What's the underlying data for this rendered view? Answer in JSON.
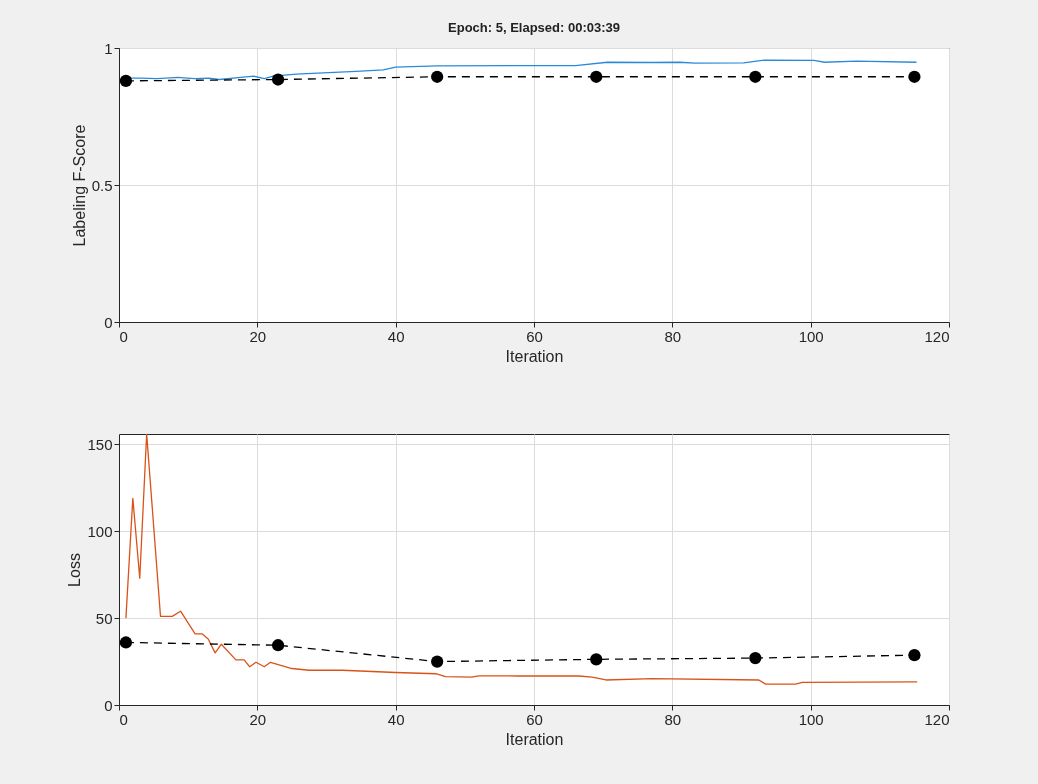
{
  "chart_data": [
    {
      "type": "line",
      "title": "Epoch: 5, Elapsed: 00:03:39",
      "xlabel": "Iteration",
      "ylabel": "Labeling F-Score",
      "xlim": [
        0,
        120
      ],
      "xticks": [
        0,
        20,
        40,
        60,
        80,
        100,
        120
      ],
      "ylim": [
        0,
        1
      ],
      "yticks": [
        0,
        0.5,
        1
      ],
      "grid": true,
      "series": [
        {
          "color": "#2b8ad8",
          "marker": "none",
          "line_style": "solid",
          "x": [
            1.5,
            3.2,
            5.5,
            8.5,
            10.9,
            13,
            14.5,
            17.6,
            19.5,
            21,
            22.3,
            25.6,
            30.3,
            34.3,
            38.2,
            40,
            46,
            66,
            70.6,
            76.9,
            81,
            83.3,
            90.3,
            93.4,
            100.5,
            102,
            106.6,
            115.3
          ],
          "values": [
            0.89,
            0.89,
            0.888,
            0.893,
            0.888,
            0.89,
            0.885,
            0.893,
            0.897,
            0.888,
            0.897,
            0.905,
            0.91,
            0.915,
            0.92,
            0.93,
            0.935,
            0.936,
            0.948,
            0.947,
            0.948,
            0.945,
            0.946,
            0.956,
            0.955,
            0.948,
            0.952,
            0.948
          ]
        },
        {
          "color": "#000000",
          "marker": "circle",
          "line_style": "dashed",
          "x": [
            1,
            23,
            46,
            69,
            92,
            115
          ],
          "values": [
            0.88,
            0.885,
            0.895,
            0.895,
            0.895,
            0.895
          ]
        }
      ]
    },
    {
      "type": "line",
      "xlabel": "Iteration",
      "ylabel": "Loss",
      "xlim": [
        0,
        120
      ],
      "xticks": [
        0,
        20,
        40,
        60,
        80,
        100,
        120
      ],
      "ylim": [
        0,
        156
      ],
      "yticks": [
        0,
        50,
        100,
        150
      ],
      "grid": true,
      "series": [
        {
          "color": "#d95319",
          "marker": "none",
          "line_style": "solid",
          "x": [
            1,
            2,
            3,
            4,
            6,
            7.7,
            8.9,
            11,
            12,
            12.9,
            13.9,
            14.8,
            16.9,
            18.1,
            18.9,
            19.8,
            21,
            21.9,
            25,
            27.5,
            32.3,
            40,
            45.8,
            47.2,
            51,
            52,
            57.8,
            66.5,
            68.4,
            70.4,
            77.1,
            92.5,
            93.5,
            97.8,
            98.8,
            115.4
          ],
          "values": [
            50,
            119,
            73,
            156,
            51,
            51,
            54,
            41,
            41,
            38,
            30,
            35,
            26,
            26,
            22,
            24.6,
            22,
            24.6,
            21,
            20,
            20,
            18.7,
            18,
            16.3,
            16,
            16.8,
            16.7,
            16.7,
            16,
            14.4,
            15.2,
            14.4,
            12,
            12,
            13,
            13.3
          ]
        },
        {
          "color": "#000000",
          "marker": "circle",
          "line_style": "dashed",
          "x": [
            1,
            23,
            46,
            69,
            92,
            115
          ],
          "values": [
            36,
            34.4,
            25,
            26.3,
            27,
            28.7
          ]
        }
      ]
    }
  ]
}
